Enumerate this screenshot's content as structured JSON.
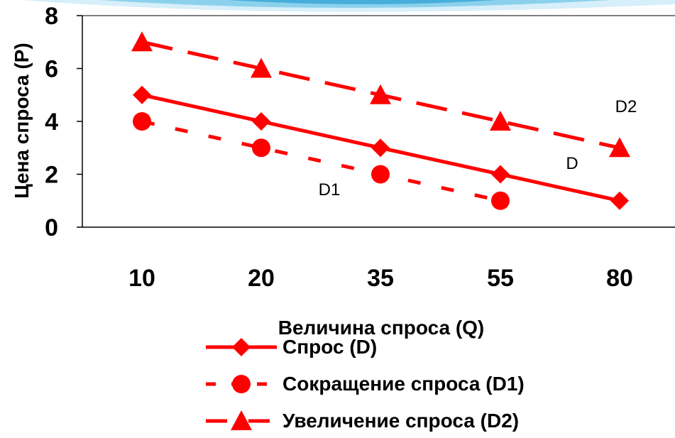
{
  "chart_data": {
    "type": "line",
    "categories": [
      "10",
      "20",
      "35",
      "55",
      "80"
    ],
    "xlabel": "Величина спроса (Q)",
    "ylabel": "Цена спроса (P)",
    "ylim": [
      0,
      8
    ],
    "yticks": [
      "0",
      "2",
      "4",
      "6",
      "8"
    ],
    "grid": false,
    "legend_position": "bottom",
    "series": [
      {
        "name": "Спрос (D)",
        "label": "D",
        "values": [
          5,
          4,
          3,
          2,
          1
        ],
        "color": "#ff0000",
        "dash": "solid",
        "marker": "diamond"
      },
      {
        "name": "Сокращение спроса (D1)",
        "label": "D1",
        "values": [
          4,
          3,
          2,
          1,
          null
        ],
        "color": "#ff0000",
        "dash": "dotted",
        "marker": "circle"
      },
      {
        "name": "Увеличение спроса (D2)",
        "label": "D2",
        "values": [
          7,
          6,
          5,
          4,
          3
        ],
        "color": "#ff0000",
        "dash": "dashed",
        "marker": "triangle"
      }
    ]
  },
  "colors": {
    "decor_light": "#d6effa",
    "decor_mid": "#7fcbe9",
    "decor_dark": "#2a9fd6"
  }
}
